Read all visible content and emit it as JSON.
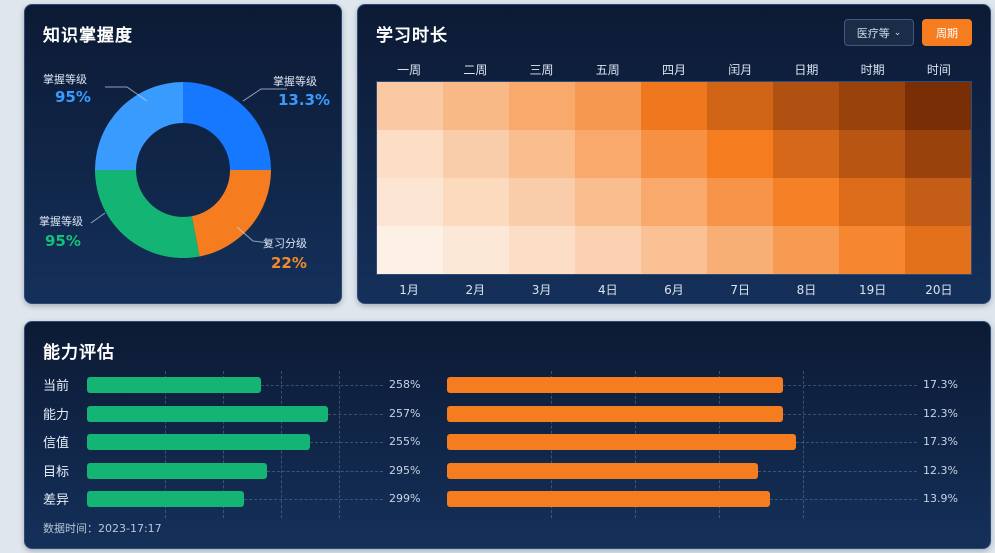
{
  "colors": {
    "blue_dark": "#1677ff",
    "blue_light": "#3a9bff",
    "green": "#14b474",
    "orange": "#f57c1f",
    "panel_bg": "#0c1a34"
  },
  "mastery": {
    "title": "知识掌握度",
    "labels": [
      {
        "name": "掌握等级",
        "value": "95%",
        "color": "#3a9bff"
      },
      {
        "name": "掌握等级",
        "value": "13.3%",
        "color": "#3a9bff"
      },
      {
        "name": "掌握等级",
        "value": "95%",
        "color": "#14c07a"
      },
      {
        "name": "复习分级",
        "value": "22%",
        "color": "#f58a2a"
      }
    ]
  },
  "study": {
    "title": "学习时长",
    "select_label": "医疗等",
    "button_label": "周期",
    "col_heads": [
      "一周",
      "二周",
      "三周",
      "五周",
      "四月",
      "闰月",
      "日期",
      "时期",
      "时间"
    ],
    "col_foots": [
      "1月",
      "2月",
      "3月",
      "4日",
      "6月",
      "7日",
      "8日",
      "19日",
      "20日"
    ]
  },
  "ability": {
    "title": "能力评估",
    "rows": [
      {
        "label": "当前",
        "left_pct": "258%",
        "right_pct": "17.3%"
      },
      {
        "label": "能力",
        "left_pct": "257%",
        "right_pct": "12.3%"
      },
      {
        "label": "信值",
        "left_pct": "255%",
        "right_pct": "17.3%"
      },
      {
        "label": "目标",
        "left_pct": "295%",
        "right_pct": "12.3%"
      },
      {
        "label": "差异",
        "left_pct": "299%",
        "right_pct": "13.9%"
      }
    ],
    "footnote": "数据时间：2023-17:17"
  },
  "chart_data": [
    {
      "type": "pie",
      "title": "知识掌握度",
      "labels": [
        "掌握等级",
        "复习分级",
        "掌握等级",
        "掌握等级"
      ],
      "values": [
        25,
        22,
        28,
        25
      ],
      "colors": [
        "#1677ff",
        "#f57c1f",
        "#14b474",
        "#3a9bff"
      ]
    },
    {
      "type": "heatmap",
      "title": "学习时长",
      "categories": [
        "一周",
        "二周",
        "三周",
        "五周",
        "四月",
        "闰月",
        "日期",
        "时期",
        "时间"
      ],
      "x_footer": [
        "1月",
        "2月",
        "3月",
        "4日",
        "6月",
        "7日",
        "8日",
        "19日",
        "20日"
      ],
      "values": [
        [
          0.22,
          0.3,
          0.38,
          0.46,
          0.62,
          0.72,
          0.82,
          0.9,
          1.0
        ],
        [
          0.12,
          0.2,
          0.28,
          0.38,
          0.5,
          0.6,
          0.7,
          0.8,
          0.9
        ],
        [
          0.08,
          0.14,
          0.2,
          0.28,
          0.38,
          0.48,
          0.58,
          0.68,
          0.76
        ],
        [
          0.03,
          0.07,
          0.12,
          0.18,
          0.26,
          0.35,
          0.45,
          0.55,
          0.66
        ]
      ],
      "color_scale": [
        "#fdf6ef",
        "#f57c1f",
        "#7a2e06"
      ]
    },
    {
      "type": "bar",
      "title": "能力评估",
      "categories": [
        "当前",
        "能力",
        "信值",
        "目标",
        "差异"
      ],
      "series": [
        {
          "values": [
            0.6,
            0.83,
            0.77,
            0.62,
            0.54
          ],
          "color": "#14b474",
          "labels": [
            "258%",
            "257%",
            "255%",
            "295%",
            "299%"
          ]
        },
        {
          "values": [
            0.8,
            0.8,
            0.83,
            0.74,
            0.77
          ],
          "color": "#f57c1f",
          "labels": [
            "17.3%",
            "12.3%",
            "17.3%",
            "12.3%",
            "13.9%"
          ]
        }
      ],
      "xlim": [
        0,
        1
      ]
    }
  ]
}
